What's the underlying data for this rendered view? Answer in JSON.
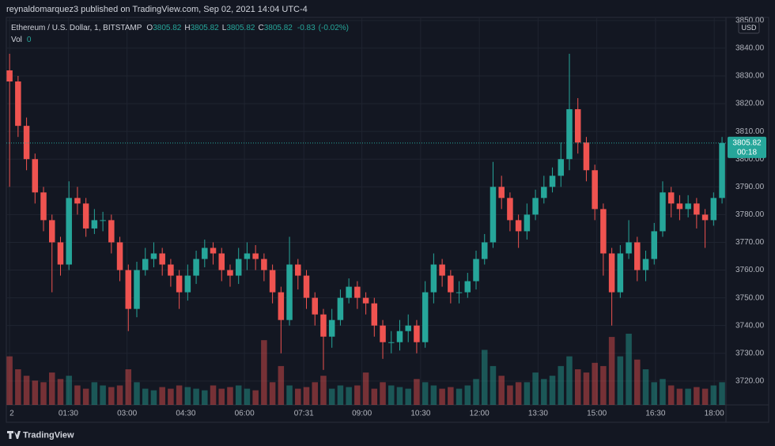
{
  "header": {
    "publisher": "reynaldomarquez3 published on TradingView.com, Sep 02, 2021 14:04 UTC-4",
    "brand": "TradingView"
  },
  "legend": {
    "symbol": "Ethereum / U.S. Dollar, 1, BITSTAMP",
    "o_label": "O",
    "open": 3805.82,
    "h_label": "H",
    "high": 3805.82,
    "l_label": "L",
    "low": 3805.82,
    "c_label": "C",
    "close": 3805.82,
    "change": -0.83,
    "change_pct": "(-0.02%)",
    "vol_label": "Vol",
    "vol": 0
  },
  "chart_data": {
    "type": "candlestick",
    "currency": "USD",
    "countdown": "00:18",
    "up_color": "#26a69a",
    "down_color": "#ef5350",
    "grid": true,
    "xlim": [
      -5,
      1098
    ],
    "ylim": [
      3711.4,
      3851.1
    ],
    "xticks": [
      {
        "value": 0,
        "label": "2"
      },
      {
        "value": 90,
        "label": "01:30"
      },
      {
        "value": 180,
        "label": "03:00"
      },
      {
        "value": 270,
        "label": "04:30"
      },
      {
        "value": 360,
        "label": "06:00"
      },
      {
        "value": 451,
        "label": "07:31"
      },
      {
        "value": 540,
        "label": "09:00"
      },
      {
        "value": 630,
        "label": "10:30"
      },
      {
        "value": 720,
        "label": "12:00"
      },
      {
        "value": 810,
        "label": "13:30"
      },
      {
        "value": 900,
        "label": "15:00"
      },
      {
        "value": 990,
        "label": "16:30"
      },
      {
        "value": 1080,
        "label": "18:00"
      }
    ],
    "yticks": [
      {
        "value": 3720,
        "label": "3720.00"
      },
      {
        "value": 3730,
        "label": "3730.00"
      },
      {
        "value": 3740,
        "label": "3740.00"
      },
      {
        "value": 3750,
        "label": "3750.00"
      },
      {
        "value": 3760,
        "label": "3760.00"
      },
      {
        "value": 3770,
        "label": "3770.00"
      },
      {
        "value": 3780,
        "label": "3780.00"
      },
      {
        "value": 3790,
        "label": "3790.00"
      },
      {
        "value": 3800,
        "label": "3800.00"
      },
      {
        "value": 3810,
        "label": "3810.00"
      },
      {
        "value": 3820,
        "label": "3820.00"
      },
      {
        "value": 3830,
        "label": "3830.00"
      },
      {
        "value": 3840,
        "label": "3840.00"
      },
      {
        "value": 3850,
        "label": "3850.00"
      }
    ],
    "x": [
      0,
      13,
      26,
      39,
      52,
      65,
      78,
      91,
      104,
      117,
      130,
      143,
      156,
      169,
      182,
      195,
      208,
      221,
      234,
      247,
      260,
      273,
      286,
      299,
      312,
      325,
      338,
      351,
      364,
      377,
      390,
      403,
      416,
      429,
      442,
      455,
      468,
      481,
      494,
      507,
      520,
      533,
      546,
      559,
      572,
      585,
      598,
      611,
      624,
      637,
      650,
      663,
      676,
      689,
      702,
      715,
      728,
      741,
      754,
      767,
      780,
      793,
      806,
      819,
      832,
      845,
      858,
      871,
      884,
      897,
      910,
      923,
      936,
      949,
      962,
      975,
      988,
      1001,
      1014,
      1027,
      1040,
      1053,
      1066,
      1079,
      1092
    ],
    "open": [
      3832,
      3828,
      3812,
      3800,
      3788,
      3778,
      3770,
      3762,
      3786,
      3784,
      3775,
      3778,
      3778,
      3770,
      3760,
      3746,
      3760,
      3764,
      3766,
      3762,
      3758,
      3752,
      3758,
      3764,
      3768,
      3766,
      3760,
      3758,
      3764,
      3766,
      3764,
      3760,
      3752,
      3742,
      3762,
      3758,
      3750,
      3744,
      3736,
      3742,
      3750,
      3754,
      3750,
      3748,
      3740,
      3734,
      3734,
      3738,
      3740,
      3734,
      3752,
      3762,
      3758,
      3752,
      3752,
      3756,
      3764,
      3770,
      3790,
      3786,
      3778,
      3774,
      3780,
      3786,
      3790,
      3794,
      3800,
      3818,
      3806,
      3796,
      3782,
      3766,
      3752,
      3766,
      3770,
      3760,
      3764,
      3774,
      3788,
      3784,
      3782,
      3784,
      3780,
      3778,
      3786
    ],
    "high": [
      3838,
      3830,
      3815,
      3802,
      3790,
      3780,
      3772,
      3792,
      3790,
      3786,
      3782,
      3781,
      3780,
      3772,
      3762,
      3763,
      3768,
      3770,
      3768,
      3764,
      3760,
      3762,
      3767,
      3771,
      3770,
      3768,
      3762,
      3768,
      3770,
      3769,
      3766,
      3762,
      3754,
      3772,
      3764,
      3760,
      3752,
      3746,
      3746,
      3753,
      3757,
      3756,
      3752,
      3750,
      3742,
      3738,
      3742,
      3744,
      3742,
      3756,
      3766,
      3764,
      3760,
      3756,
      3759,
      3767,
      3773,
      3799,
      3794,
      3788,
      3780,
      3784,
      3789,
      3794,
      3797,
      3806,
      3838,
      3822,
      3808,
      3798,
      3784,
      3768,
      3769,
      3778,
      3772,
      3767,
      3777,
      3792,
      3790,
      3787,
      3787,
      3786,
      3782,
      3788,
      3808
    ],
    "low": [
      3790,
      3808,
      3796,
      3784,
      3774,
      3752,
      3758,
      3760,
      3780,
      3772,
      3773,
      3774,
      3766,
      3756,
      3738,
      3743,
      3758,
      3761,
      3758,
      3754,
      3746,
      3749,
      3755,
      3761,
      3762,
      3756,
      3754,
      3755,
      3760,
      3760,
      3756,
      3748,
      3730,
      3740,
      3753,
      3746,
      3740,
      3724,
      3732,
      3740,
      3748,
      3746,
      3744,
      3736,
      3728,
      3730,
      3731,
      3734,
      3730,
      3732,
      3748,
      3754,
      3748,
      3748,
      3750,
      3753,
      3762,
      3768,
      3782,
      3774,
      3768,
      3771,
      3778,
      3784,
      3788,
      3790,
      3796,
      3802,
      3792,
      3778,
      3758,
      3740,
      3750,
      3764,
      3756,
      3756,
      3762,
      3772,
      3779,
      3778,
      3779,
      3775,
      3768,
      3776,
      3784
    ],
    "close": [
      3828,
      3812,
      3800,
      3788,
      3778,
      3770,
      3762,
      3786,
      3784,
      3775,
      3778,
      3778,
      3770,
      3760,
      3746,
      3760,
      3764,
      3766,
      3762,
      3758,
      3752,
      3758,
      3764,
      3768,
      3766,
      3760,
      3758,
      3764,
      3766,
      3764,
      3760,
      3752,
      3742,
      3762,
      3758,
      3750,
      3744,
      3736,
      3742,
      3750,
      3754,
      3750,
      3748,
      3740,
      3734,
      3734,
      3738,
      3740,
      3734,
      3752,
      3762,
      3758,
      3752,
      3752,
      3756,
      3764,
      3770,
      3790,
      3786,
      3778,
      3774,
      3780,
      3786,
      3790,
      3794,
      3800,
      3818,
      3806,
      3796,
      3782,
      3766,
      3752,
      3766,
      3770,
      3760,
      3764,
      3774,
      3788,
      3784,
      3782,
      3784,
      3780,
      3778,
      3786,
      3805.82
    ],
    "volume": [
      30,
      22,
      18,
      15,
      14,
      20,
      16,
      18,
      12,
      10,
      14,
      12,
      11,
      12,
      22,
      14,
      10,
      9,
      11,
      10,
      12,
      11,
      10,
      9,
      12,
      10,
      11,
      12,
      10,
      9,
      40,
      14,
      24,
      12,
      10,
      11,
      14,
      18,
      10,
      12,
      11,
      12,
      20,
      10,
      14,
      12,
      11,
      10,
      16,
      14,
      12,
      10,
      11,
      10,
      12,
      16,
      34,
      24,
      18,
      12,
      14,
      14,
      20,
      16,
      18,
      24,
      30,
      22,
      20,
      26,
      24,
      42,
      30,
      44,
      28,
      22,
      14,
      16,
      12,
      10,
      10,
      11,
      10,
      12,
      14
    ]
  }
}
